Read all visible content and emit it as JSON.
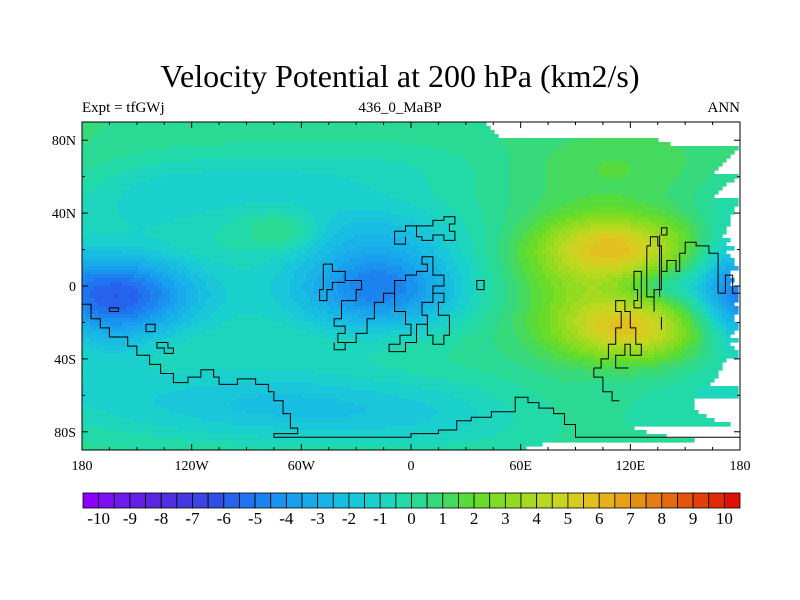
{
  "chart_data": {
    "type": "heatmap",
    "title": "Velocity Potential at 200 hPa (km2/s)",
    "left_label": "Expt = tfGWj",
    "center_label": "436_0_MaBP",
    "right_label": "ANN",
    "x_range": [
      -180,
      180
    ],
    "y_range": [
      -90,
      90
    ],
    "x_ticks": [
      {
        "value": -180,
        "label": "180"
      },
      {
        "value": -120,
        "label": "120W"
      },
      {
        "value": -60,
        "label": "60W"
      },
      {
        "value": 0,
        "label": "0"
      },
      {
        "value": 60,
        "label": "60E"
      },
      {
        "value": 120,
        "label": "120E"
      },
      {
        "value": 180,
        "label": "180"
      }
    ],
    "y_ticks": [
      {
        "value": 80,
        "label": "80N"
      },
      {
        "value": 40,
        "label": "40N"
      },
      {
        "value": 0,
        "label": "0"
      },
      {
        "value": -40,
        "label": "40S"
      },
      {
        "value": -80,
        "label": "80S"
      }
    ],
    "background_value": 0.5,
    "field_features": [
      {
        "lon": -155,
        "lat": -5,
        "amplitude": -5.2,
        "width_lon": 30,
        "width_lat": 16
      },
      {
        "lon": -15,
        "lat": -2,
        "amplitude": -5.0,
        "width_lon": 32,
        "width_lat": 16
      },
      {
        "lon": -75,
        "lat": -5,
        "amplitude": -1.0,
        "width_lon": 40,
        "width_lat": 25
      },
      {
        "lon": -20,
        "lat": 30,
        "amplitude": -2.0,
        "width_lon": 40,
        "width_lat": 14
      },
      {
        "lon": -170,
        "lat": -15,
        "amplitude": -1.5,
        "width_lon": 20,
        "width_lat": 25
      },
      {
        "lon": -100,
        "lat": -62,
        "amplitude": -1.8,
        "width_lon": 80,
        "width_lat": 16
      },
      {
        "lon": 10,
        "lat": -72,
        "amplitude": -1.6,
        "width_lon": 90,
        "width_lat": 14
      },
      {
        "lon": -110,
        "lat": 55,
        "amplitude": -1.5,
        "width_lon": 60,
        "width_lat": 14
      },
      {
        "lon": 0,
        "lat": 65,
        "amplitude": -0.8,
        "width_lon": 60,
        "width_lat": 12
      },
      {
        "lon": 112,
        "lat": 22,
        "amplitude": 4.0,
        "width_lon": 30,
        "width_lat": 12
      },
      {
        "lon": 122,
        "lat": -24,
        "amplitude": 4.2,
        "width_lon": 28,
        "width_lat": 12
      },
      {
        "lon": 100,
        "lat": 0,
        "amplitude": 2.2,
        "width_lon": 28,
        "width_lat": 24
      },
      {
        "lon": 135,
        "lat": 0,
        "amplitude": -1.5,
        "width_lon": 18,
        "width_lat": 6
      },
      {
        "lon": 172,
        "lat": 8,
        "amplitude": -1.3,
        "width_lon": 12,
        "width_lat": 22
      },
      {
        "lon": 110,
        "lat": 65,
        "amplitude": 1.2,
        "width_lon": 45,
        "width_lat": 14
      },
      {
        "lon": -70,
        "lat": 30,
        "amplitude": 1.6,
        "width_lon": 15,
        "width_lat": 8
      },
      {
        "lon": -145,
        "lat": 40,
        "amplitude": -0.8,
        "width_lon": 25,
        "width_lat": 12
      },
      {
        "lon": 85,
        "lat": -70,
        "amplitude": 0.8,
        "width_lon": 40,
        "width_lat": 12
      }
    ],
    "colorbar": {
      "min": -10.5,
      "max": 10.5,
      "step": 0.5,
      "colors": [
        "#8a00ff",
        "#7d0ef2",
        "#6f1aec",
        "#621fe5",
        "#5827de",
        "#4f30e0",
        "#4638e0",
        "#3e44e2",
        "#2f50e6",
        "#2663ec",
        "#2074ef",
        "#1d84ef",
        "#1a92ef",
        "#189fee",
        "#18aaeb",
        "#18b4e8",
        "#18bee2",
        "#19c6da",
        "#1ad0cd",
        "#1ed6bd",
        "#22d9a8",
        "#2ad994",
        "#36d97b",
        "#45d95e",
        "#58dc3c",
        "#69dc2a",
        "#80dc22",
        "#93db20",
        "#a6da20",
        "#b9d820",
        "#cad421",
        "#d8cc20",
        "#e2c01d",
        "#e6b21a",
        "#e6a117",
        "#e59014",
        "#e47d12",
        "#e46a10",
        "#e3550d",
        "#e33f0b",
        "#e2290a",
        "#e01008"
      ],
      "labels": [
        "-10",
        "-9",
        "-8",
        "-7",
        "-6",
        "-5",
        "-4",
        "-3",
        "-2",
        "-1",
        "0",
        "1",
        "2",
        "3",
        "4",
        "5",
        "6",
        "7",
        "8",
        "9",
        "10"
      ]
    },
    "coastlines": [
      [
        [
          -180,
          -10
        ],
        [
          -175,
          -10
        ],
        [
          -175,
          -18
        ],
        [
          -170,
          -18
        ],
        [
          -170,
          -23
        ],
        [
          -165,
          -23
        ],
        [
          -165,
          -28
        ],
        [
          -155,
          -28
        ],
        [
          -155,
          -33
        ],
        [
          -150,
          -33
        ],
        [
          -150,
          -38
        ],
        [
          -143,
          -38
        ],
        [
          -143,
          -43
        ],
        [
          -137,
          -43
        ],
        [
          -137,
          -48
        ],
        [
          -130,
          -48
        ],
        [
          -130,
          -53
        ],
        [
          -122,
          -53
        ],
        [
          -122,
          -50
        ],
        [
          -115,
          -50
        ],
        [
          -115,
          -46
        ],
        [
          -108,
          -46
        ],
        [
          -108,
          -50
        ],
        [
          -105,
          -50
        ],
        [
          -105,
          -54
        ],
        [
          -95,
          -54
        ],
        [
          -95,
          -51
        ],
        [
          -85,
          -51
        ],
        [
          -85,
          -54
        ],
        [
          -78,
          -54
        ],
        [
          -78,
          -58
        ],
        [
          -75,
          -58
        ],
        [
          -75,
          -63
        ],
        [
          -70,
          -63
        ],
        [
          -70,
          -70
        ],
        [
          -66,
          -70
        ],
        [
          -66,
          -78
        ],
        [
          -62,
          -78
        ],
        [
          -62,
          -81
        ],
        [
          -75,
          -81
        ],
        [
          -75,
          -83
        ],
        [
          0,
          -83
        ],
        [
          0,
          -81
        ],
        [
          15,
          -81
        ],
        [
          15,
          -79
        ],
        [
          25,
          -79
        ],
        [
          25,
          -74
        ],
        [
          33,
          -74
        ],
        [
          33,
          -72
        ],
        [
          44,
          -72
        ],
        [
          44,
          -69
        ],
        [
          57,
          -69
        ],
        [
          57,
          -61
        ],
        [
          64,
          -61
        ],
        [
          64,
          -64
        ],
        [
          70,
          -64
        ],
        [
          70,
          -67
        ],
        [
          78,
          -67
        ],
        [
          78,
          -70
        ],
        [
          84,
          -70
        ],
        [
          84,
          -76
        ],
        [
          90,
          -76
        ],
        [
          90,
          -83
        ],
        [
          180,
          -83
        ]
      ],
      [
        [
          -165,
          -12
        ],
        [
          -160,
          -12
        ],
        [
          -160,
          -14
        ],
        [
          -165,
          -14
        ],
        [
          -165,
          -12
        ]
      ],
      [
        [
          -145,
          -21
        ],
        [
          -140,
          -21
        ],
        [
          -140,
          -25
        ],
        [
          -145,
          -25
        ],
        [
          -145,
          -21
        ]
      ],
      [
        [
          -137,
          -31
        ],
        [
          -133,
          -31
        ],
        [
          -133,
          -34
        ],
        [
          -130,
          -34
        ],
        [
          -130,
          -37
        ],
        [
          -135,
          -37
        ],
        [
          -135,
          -34
        ],
        [
          -139,
          -34
        ],
        [
          -139,
          -31
        ],
        [
          -137,
          -31
        ]
      ],
      [
        [
          -48,
          12
        ],
        [
          -43,
          12
        ],
        [
          -43,
          8
        ],
        [
          -36,
          8
        ],
        [
          -36,
          3
        ],
        [
          -27,
          3
        ],
        [
          -27,
          -2
        ],
        [
          -30,
          -2
        ],
        [
          -30,
          -8
        ],
        [
          -38,
          -8
        ],
        [
          -38,
          -18
        ],
        [
          -42,
          -18
        ],
        [
          -42,
          -22
        ],
        [
          -36,
          -22
        ],
        [
          -36,
          -26
        ],
        [
          -40,
          -26
        ],
        [
          -40,
          -31
        ],
        [
          -30,
          -31
        ],
        [
          -30,
          -26
        ],
        [
          -24,
          -26
        ],
        [
          -24,
          -18
        ],
        [
          -20,
          -18
        ],
        [
          -20,
          -9
        ],
        [
          -15,
          -9
        ],
        [
          -15,
          -4
        ],
        [
          -9,
          -4
        ],
        [
          -9,
          -14
        ],
        [
          -3,
          -14
        ],
        [
          -3,
          -21
        ],
        [
          0,
          -21
        ],
        [
          0,
          -27
        ],
        [
          -6,
          -27
        ],
        [
          -6,
          -32
        ],
        [
          -12,
          -32
        ],
        [
          -12,
          -36
        ],
        [
          -3,
          -36
        ],
        [
          -3,
          -31
        ],
        [
          3,
          -31
        ],
        [
          3,
          -21
        ],
        [
          9,
          -21
        ],
        [
          9,
          -16
        ],
        [
          6,
          -16
        ],
        [
          6,
          -9
        ],
        [
          12,
          -9
        ],
        [
          12,
          -4
        ],
        [
          18,
          -4
        ],
        [
          18,
          -9
        ],
        [
          15,
          -9
        ],
        [
          15,
          -16
        ],
        [
          21,
          -16
        ],
        [
          21,
          -27
        ],
        [
          18,
          -27
        ],
        [
          18,
          -32
        ],
        [
          12,
          -32
        ],
        [
          12,
          -27
        ],
        [
          9,
          -27
        ],
        [
          9,
          -21
        ]
      ],
      [
        [
          -48,
          12
        ],
        [
          -48,
          -2
        ],
        [
          -50,
          -2
        ],
        [
          -50,
          -8
        ],
        [
          -46,
          -8
        ],
        [
          -46,
          -2
        ],
        [
          -43,
          -2
        ],
        [
          -43,
          2
        ],
        [
          -36,
          2
        ]
      ],
      [
        [
          -42,
          -31
        ],
        [
          -42,
          -35
        ],
        [
          -36,
          -35
        ],
        [
          -36,
          -31
        ]
      ],
      [
        [
          -9,
          -4
        ],
        [
          -9,
          3
        ],
        [
          -3,
          3
        ],
        [
          -3,
          6
        ],
        [
          3,
          6
        ],
        [
          3,
          8
        ],
        [
          9,
          8
        ],
        [
          9,
          12
        ],
        [
          6,
          12
        ],
        [
          6,
          16
        ],
        [
          12,
          16
        ],
        [
          12,
          6
        ],
        [
          18,
          6
        ],
        [
          18,
          0
        ],
        [
          12,
          0
        ],
        [
          12,
          -4
        ]
      ],
      [
        [
          3,
          27
        ],
        [
          3,
          33
        ],
        [
          12,
          33
        ],
        [
          12,
          36
        ],
        [
          18,
          36
        ],
        [
          18,
          38
        ],
        [
          24,
          38
        ],
        [
          24,
          34
        ],
        [
          21,
          34
        ],
        [
          21,
          30
        ],
        [
          24,
          30
        ],
        [
          24,
          25
        ],
        [
          18,
          25
        ],
        [
          18,
          28
        ],
        [
          12,
          28
        ],
        [
          12,
          25
        ],
        [
          6,
          25
        ],
        [
          6,
          27
        ],
        [
          3,
          27
        ]
      ],
      [
        [
          -9,
          27
        ],
        [
          -9,
          30
        ],
        [
          -3,
          30
        ],
        [
          -3,
          33
        ],
        [
          3,
          33
        ]
      ],
      [
        [
          -9,
          27
        ],
        [
          -9,
          23
        ],
        [
          -3,
          23
        ],
        [
          -3,
          27
        ]
      ],
      [
        [
          36,
          -2
        ],
        [
          36,
          3
        ],
        [
          40,
          3
        ],
        [
          40,
          -2
        ],
        [
          36,
          -2
        ]
      ],
      [
        [
          100,
          -45
        ],
        [
          100,
          -50
        ],
        [
          105,
          -50
        ],
        [
          105,
          -58
        ],
        [
          110,
          -58
        ],
        [
          110,
          -63
        ],
        [
          114,
          -63
        ]
      ],
      [
        [
          100,
          -45
        ],
        [
          104,
          -45
        ],
        [
          104,
          -40
        ],
        [
          108,
          -40
        ],
        [
          108,
          -32
        ],
        [
          112,
          -32
        ],
        [
          112,
          -23
        ],
        [
          115,
          -23
        ],
        [
          115,
          -14
        ],
        [
          112,
          -14
        ],
        [
          112,
          -8
        ],
        [
          117,
          -8
        ],
        [
          117,
          -14
        ],
        [
          120,
          -14
        ],
        [
          120,
          -23
        ],
        [
          123,
          -23
        ],
        [
          123,
          -32
        ],
        [
          126,
          -32
        ],
        [
          126,
          -38
        ],
        [
          120,
          -38
        ],
        [
          120,
          -32
        ],
        [
          117,
          -32
        ],
        [
          117,
          -38
        ],
        [
          112,
          -38
        ],
        [
          112,
          -45
        ],
        [
          119,
          -45
        ]
      ],
      [
        [
          122,
          -12
        ],
        [
          122,
          -8
        ],
        [
          124,
          -8
        ],
        [
          124,
          -2
        ],
        [
          122,
          -2
        ],
        [
          122,
          8
        ],
        [
          126,
          8
        ],
        [
          126,
          -12
        ],
        [
          122,
          -12
        ]
      ],
      [
        [
          129,
          22
        ],
        [
          129,
          -6
        ],
        [
          133,
          -6
        ],
        [
          133,
          -14
        ]
      ],
      [
        [
          129,
          22
        ],
        [
          131,
          22
        ],
        [
          131,
          27
        ],
        [
          135,
          27
        ],
        [
          135,
          22
        ],
        [
          137,
          22
        ],
        [
          137,
          -2
        ],
        [
          133,
          -2
        ],
        [
          133,
          -6
        ]
      ],
      [
        [
          137,
          8
        ],
        [
          140,
          8
        ],
        [
          140,
          14
        ],
        [
          145,
          14
        ],
        [
          145,
          8
        ],
        [
          147,
          8
        ],
        [
          147,
          18
        ],
        [
          150,
          18
        ],
        [
          150,
          24
        ],
        [
          156,
          24
        ],
        [
          156,
          22
        ],
        [
          163,
          22
        ],
        [
          163,
          18
        ],
        [
          168,
          18
        ],
        [
          168,
          -4
        ]
      ],
      [
        [
          168,
          -4
        ],
        [
          172,
          -4
        ],
        [
          172,
          6
        ],
        [
          176,
          6
        ],
        [
          176,
          -4
        ],
        [
          180,
          -4
        ]
      ],
      [
        [
          136,
          28
        ],
        [
          136,
          -6
        ]
      ],
      [
        [
          137,
          28
        ],
        [
          140,
          28
        ],
        [
          140,
          32
        ],
        [
          137,
          32
        ],
        [
          137,
          28
        ]
      ],
      [
        [
          137,
          -17
        ],
        [
          137,
          -24
        ]
      ]
    ]
  }
}
